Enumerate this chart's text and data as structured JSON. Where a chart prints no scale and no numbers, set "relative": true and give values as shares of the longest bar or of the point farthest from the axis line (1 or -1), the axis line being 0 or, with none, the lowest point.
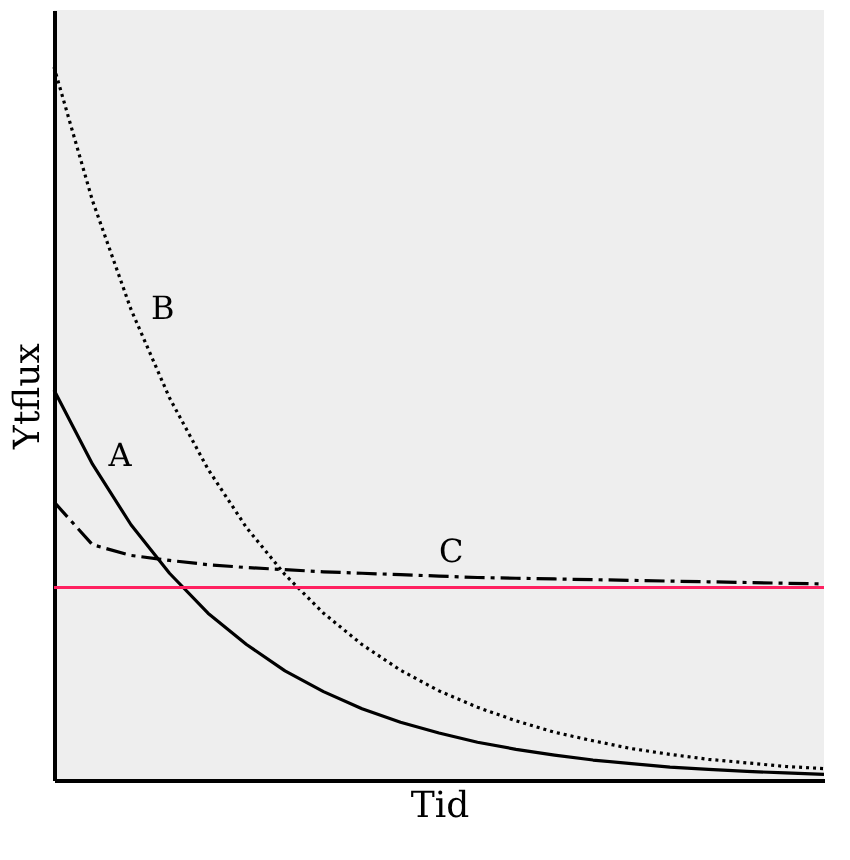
{
  "chart_data": {
    "type": "line",
    "relative": true,
    "xlabel": "Tid",
    "ylabel": "Ytflux",
    "tick_labels": false,
    "grid": false,
    "legend": false,
    "marker": "none",
    "categories": [
      null,
      null,
      null,
      null,
      null,
      null,
      null,
      null,
      null,
      null,
      null,
      null,
      null,
      null,
      null,
      null,
      null,
      null,
      null,
      null,
      null
    ],
    "series": [
      {
        "name": "A",
        "color": "#000000",
        "line_style": "solid",
        "values": [
          0.547,
          0.443,
          0.358,
          0.29,
          0.234,
          0.19,
          0.153,
          0.124,
          0.1,
          0.081,
          0.066,
          0.053,
          0.043,
          0.035,
          0.028,
          0.023,
          0.018,
          0.015,
          0.012,
          0.01,
          0.008
        ]
      },
      {
        "name": "B",
        "color": "#000000",
        "line_style": "dotted",
        "values": [
          1,
          0.8125,
          0.66,
          0.536,
          0.436,
          0.354,
          0.288,
          0.234,
          0.19,
          0.154,
          0.125,
          0.102,
          0.083,
          0.067,
          0.055,
          0.044,
          0.036,
          0.029,
          0.024,
          0.019,
          0.016
        ]
      },
      {
        "name": "C",
        "color": "#000000",
        "line_style": "dashed",
        "values": [
          0.39,
          0.33,
          0.315,
          0.308,
          0.302,
          0.298,
          0.295,
          0.292,
          0.29,
          0.288,
          0.286,
          0.284,
          0.283,
          0.282,
          0.281,
          0.28,
          0.279,
          0.278,
          0.277,
          0.276,
          0.275
        ]
      }
    ],
    "ref_lines": [
      {
        "axis": "y",
        "value": 0.27,
        "color": "#ff2060",
        "line_style": "solid"
      }
    ]
  }
}
